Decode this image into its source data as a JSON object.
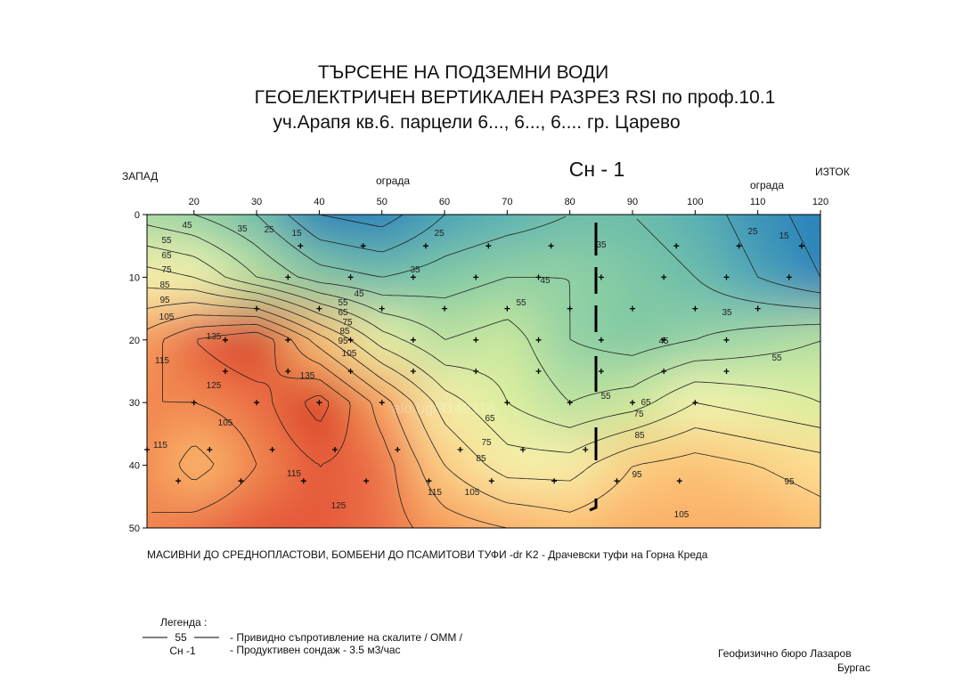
{
  "header": {
    "title_lines": [
      "ТЪРСЕНЕ НА ПОДЗЕМНИ  ВОДИ",
      "ГЕОЕЛЕКТРИЧЕН  ВЕРТИКАЛЕН РАЗРЕЗ  RSI  по  проф.10.1",
      "уч.Арапя  кв.6.  парцели  6...,  6...,  6....   гр. Царево"
    ]
  },
  "chart_data": {
    "type": "contour",
    "well_label": "Сн - 1",
    "west_label": "ЗАПАД",
    "east_label": "ИЗТОК",
    "fence_labels": [
      "ограда",
      "ограда"
    ],
    "watermark": "alo.bg/9142118",
    "xlim": [
      12.5,
      120
    ],
    "ylim": [
      0,
      50
    ],
    "xticks": [
      20,
      30,
      40,
      50,
      60,
      70,
      80,
      90,
      100,
      110,
      120
    ],
    "yticks": [
      0,
      10,
      20,
      30,
      40,
      50
    ],
    "grid_x": [
      12.5,
      20,
      30,
      40,
      50,
      60,
      70,
      80,
      90,
      100,
      110,
      120
    ],
    "grid_y": [
      0,
      10,
      20,
      30,
      40,
      50
    ],
    "z": [
      [
        50,
        45,
        35,
        15,
        10,
        25,
        30,
        35,
        35,
        30,
        20,
        10
      ],
      [
        80,
        75,
        55,
        40,
        35,
        40,
        45,
        45,
        40,
        35,
        25,
        15
      ],
      [
        110,
        125,
        135,
        100,
        70,
        55,
        60,
        45,
        40,
        45,
        50,
        55
      ],
      [
        115,
        115,
        120,
        140,
        110,
        80,
        65,
        55,
        60,
        75,
        70,
        65
      ],
      [
        115,
        100,
        115,
        125,
        120,
        95,
        80,
        80,
        95,
        100,
        95,
        90
      ],
      [
        115,
        120,
        125,
        125,
        120,
        110,
        105,
        100,
        105,
        105,
        105,
        100
      ]
    ],
    "levels": [
      15,
      25,
      35,
      45,
      55,
      65,
      75,
      85,
      95,
      105,
      115,
      125,
      135
    ],
    "colors": [
      "#2b83ba",
      "#4fa9b8",
      "#7cc7a4",
      "#a8dba4",
      "#d6ee9b",
      "#f4f6b1",
      "#fee8a0",
      "#fdc374",
      "#f79a59",
      "#e8603f",
      "#d7301f"
    ],
    "points": {
      "x": [
        37,
        47,
        57,
        67,
        77,
        97,
        107,
        117,
        35,
        45,
        55,
        65,
        75,
        85,
        95,
        105,
        115,
        30,
        40,
        50,
        60,
        70,
        80,
        90,
        100,
        110,
        25,
        35,
        45,
        55,
        65,
        75,
        85,
        95,
        105,
        25,
        35,
        45,
        55,
        65,
        75,
        85,
        95,
        105,
        20,
        30,
        40,
        50,
        70,
        80,
        90,
        100,
        12.5,
        22.5,
        32.5,
        42.5,
        52.5,
        62.5,
        72.5,
        82.5,
        17.5,
        27.5,
        37.5,
        47.5,
        57.5,
        67.5,
        77.5,
        87.5,
        97.5
      ],
      "y": [
        5,
        5,
        5,
        5,
        5,
        5,
        5,
        5,
        10,
        10,
        10,
        10,
        10,
        10,
        10,
        10,
        10,
        15,
        15,
        15,
        15,
        15,
        15,
        15,
        15,
        15,
        20,
        20,
        20,
        20,
        20,
        20,
        20,
        20,
        20,
        25,
        25,
        25,
        25,
        25,
        25,
        25,
        25,
        25,
        30,
        30,
        30,
        30,
        30,
        30,
        30,
        30,
        37.5,
        37.5,
        37.5,
        37.5,
        37.5,
        37.5,
        37.5,
        37.5,
        42.5,
        42.5,
        42.5,
        42.5,
        42.5,
        42.5,
        42.5,
        42.5,
        42.5
      ]
    },
    "caption": "МАСИВНИ ДО СРЕДНОПЛАСТОВИ,  БОМБЕНИ ДО ПСАМИТОВИ  ТУФИ    -dr K2 - Драчевски  туфи  на  Горна  Креда"
  },
  "legend": {
    "title": "Легенда :",
    "sample_value": "55",
    "sample_well": "Сн -1",
    "resistivity": "- Привидно съпротивление на скалите   / ОММ /",
    "well": "- Продуктивен сондаж  - 3.5 м3/час"
  },
  "footer": {
    "author": "Геофизично  бюро  Лазаров",
    "city": "Бургас"
  }
}
